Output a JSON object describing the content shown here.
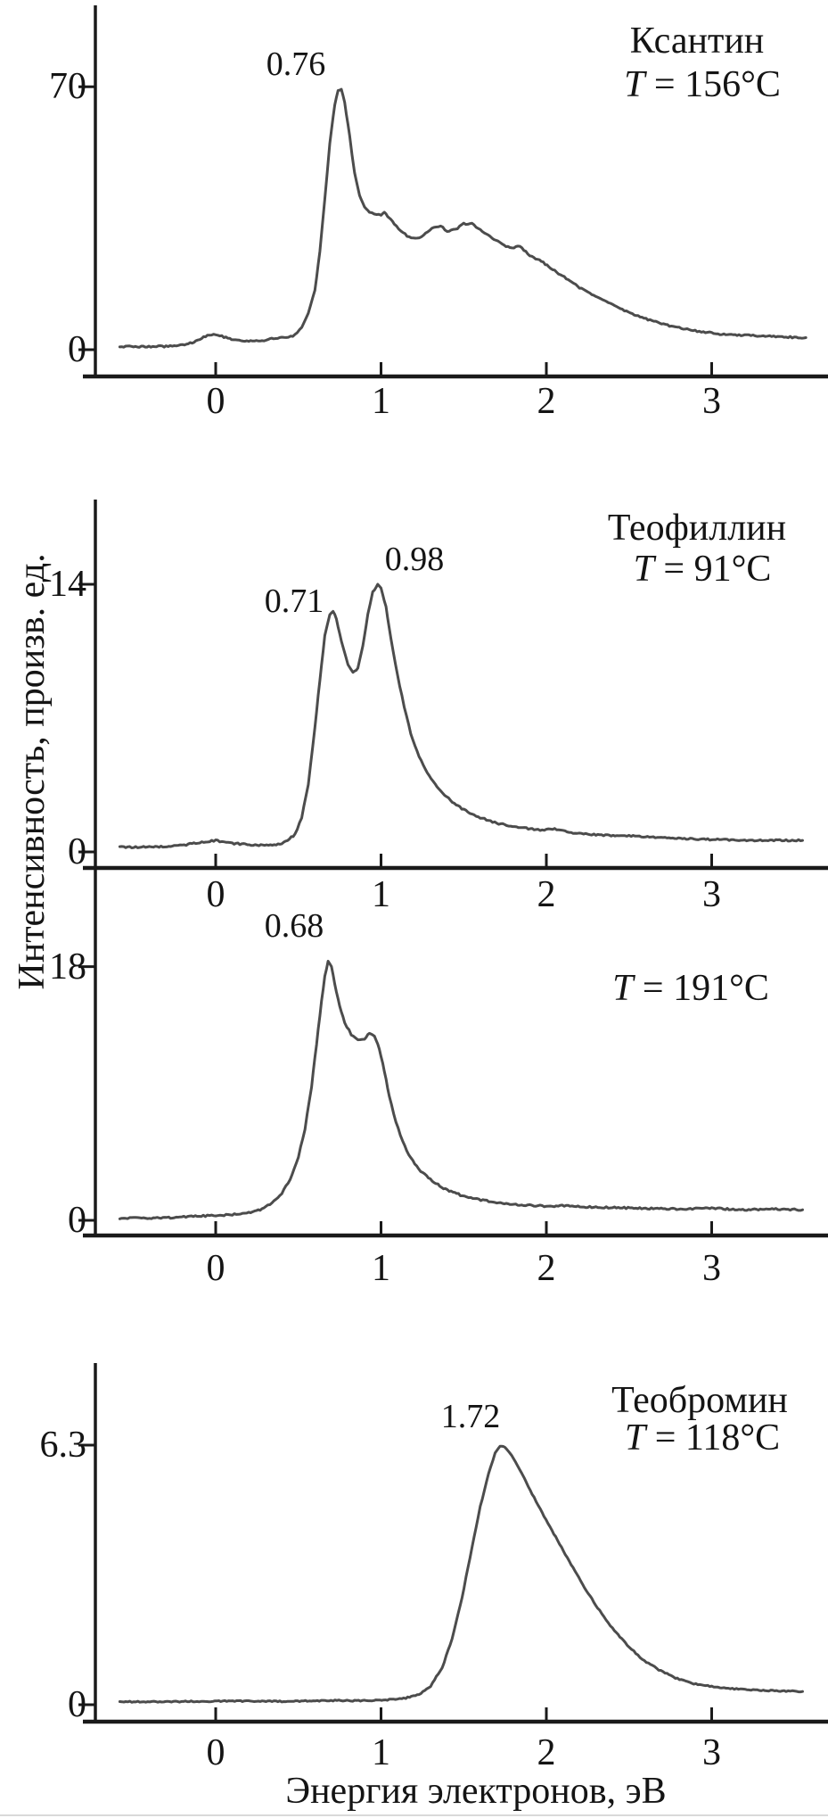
{
  "figure": {
    "x_axis_title": "Энергия электронов, эВ",
    "y_axis_title": "Интенсивность, произв. ед.",
    "x_tick_labels": [
      "0",
      "1",
      "2",
      "3"
    ],
    "x_tick_values": [
      0,
      1,
      2,
      3
    ],
    "curve_color": "#4c4c4c",
    "axis_color": "#1a1a1a"
  },
  "chart_data": [
    {
      "type": "line",
      "title": "Ксантин",
      "temp_prefix": "T",
      "temp_rest": " = 156°C",
      "peak_labels": [
        {
          "text": "0.76",
          "x": 0.76
        }
      ],
      "y_ticks": [
        {
          "label": "70",
          "value": 70
        },
        {
          "label": "0",
          "value": 0
        }
      ],
      "xlim": [
        -0.6,
        3.6
      ],
      "ylim": [
        0,
        78
      ],
      "xlabel": "Энергия электронов, эВ",
      "ylabel": "Интенсивность, произв. ед.",
      "series": [
        {
          "name": "xanthine-spectrum",
          "points": [
            [
              -0.58,
              0.8
            ],
            [
              -0.45,
              0.8
            ],
            [
              -0.3,
              0.9
            ],
            [
              -0.2,
              1.2
            ],
            [
              -0.12,
              2.2
            ],
            [
              -0.05,
              3.8
            ],
            [
              0.0,
              4.1
            ],
            [
              0.05,
              3.4
            ],
            [
              0.12,
              2.6
            ],
            [
              0.2,
              2.2
            ],
            [
              0.28,
              2.3
            ],
            [
              0.35,
              3.0
            ],
            [
              0.4,
              3.4
            ],
            [
              0.44,
              3.2
            ],
            [
              0.48,
              4.0
            ],
            [
              0.52,
              6.0
            ],
            [
              0.56,
              9.5
            ],
            [
              0.6,
              16
            ],
            [
              0.63,
              26
            ],
            [
              0.66,
              40
            ],
            [
              0.69,
              55
            ],
            [
              0.72,
              65
            ],
            [
              0.74,
              69
            ],
            [
              0.76,
              69.5
            ],
            [
              0.78,
              66
            ],
            [
              0.81,
              57
            ],
            [
              0.84,
              47
            ],
            [
              0.87,
              41
            ],
            [
              0.9,
              38
            ],
            [
              0.93,
              36.5
            ],
            [
              0.96,
              36
            ],
            [
              1.0,
              36
            ],
            [
              1.02,
              36.5
            ],
            [
              1.05,
              35
            ],
            [
              1.08,
              33.5
            ],
            [
              1.12,
              31.5
            ],
            [
              1.17,
              30
            ],
            [
              1.22,
              29.5
            ],
            [
              1.27,
              31
            ],
            [
              1.32,
              32.5
            ],
            [
              1.36,
              33
            ],
            [
              1.4,
              31.5
            ],
            [
              1.45,
              32
            ],
            [
              1.5,
              33.5
            ],
            [
              1.55,
              33.5
            ],
            [
              1.6,
              32
            ],
            [
              1.66,
              30
            ],
            [
              1.72,
              28.5
            ],
            [
              1.78,
              27
            ],
            [
              1.84,
              27.5
            ],
            [
              1.9,
              25
            ],
            [
              1.97,
              23.5
            ],
            [
              2.05,
              21
            ],
            [
              2.12,
              19
            ],
            [
              2.2,
              16.5
            ],
            [
              2.3,
              14
            ],
            [
              2.4,
              12
            ],
            [
              2.52,
              9.5
            ],
            [
              2.65,
              7.5
            ],
            [
              2.78,
              6
            ],
            [
              2.9,
              5
            ],
            [
              3.05,
              4.2
            ],
            [
              3.2,
              3.8
            ],
            [
              3.35,
              3.6
            ],
            [
              3.5,
              3.3
            ],
            [
              3.57,
              3.2
            ]
          ]
        }
      ]
    },
    {
      "type": "line",
      "title": "Теофиллин",
      "temp_prefix": "T",
      "temp_rest": " = 91°C",
      "peak_labels": [
        {
          "text": "0.71",
          "x": 0.71
        },
        {
          "text": "0.98",
          "x": 0.98
        }
      ],
      "y_ticks": [
        {
          "label": "14",
          "value": 14
        },
        {
          "label": "0",
          "value": 0
        }
      ],
      "xlim": [
        -0.6,
        3.6
      ],
      "ylim": [
        0,
        17
      ],
      "series": [
        {
          "name": "theophylline-91C-spectrum",
          "points": [
            [
              -0.58,
              0.25
            ],
            [
              -0.4,
              0.25
            ],
            [
              -0.25,
              0.3
            ],
            [
              -0.12,
              0.45
            ],
            [
              0.0,
              0.6
            ],
            [
              0.1,
              0.45
            ],
            [
              0.25,
              0.35
            ],
            [
              0.4,
              0.4
            ],
            [
              0.48,
              0.9
            ],
            [
              0.52,
              1.8
            ],
            [
              0.56,
              3.5
            ],
            [
              0.6,
              6.5
            ],
            [
              0.63,
              9.0
            ],
            [
              0.66,
              11.3
            ],
            [
              0.69,
              12.4
            ],
            [
              0.71,
              12.6
            ],
            [
              0.73,
              12.2
            ],
            [
              0.76,
              11.0
            ],
            [
              0.8,
              9.8
            ],
            [
              0.83,
              9.4
            ],
            [
              0.86,
              9.6
            ],
            [
              0.89,
              10.8
            ],
            [
              0.92,
              12.4
            ],
            [
              0.95,
              13.6
            ],
            [
              0.98,
              14.0
            ],
            [
              1.0,
              13.8
            ],
            [
              1.03,
              12.8
            ],
            [
              1.06,
              11.2
            ],
            [
              1.1,
              9.2
            ],
            [
              1.14,
              7.6
            ],
            [
              1.18,
              6.2
            ],
            [
              1.23,
              5.0
            ],
            [
              1.28,
              4.1
            ],
            [
              1.35,
              3.3
            ],
            [
              1.42,
              2.7
            ],
            [
              1.5,
              2.2
            ],
            [
              1.6,
              1.8
            ],
            [
              1.7,
              1.5
            ],
            [
              1.82,
              1.3
            ],
            [
              1.95,
              1.15
            ],
            [
              2.05,
              1.2
            ],
            [
              2.15,
              1.0
            ],
            [
              2.3,
              0.9
            ],
            [
              2.45,
              0.85
            ],
            [
              2.6,
              0.8
            ],
            [
              2.8,
              0.7
            ],
            [
              3.0,
              0.65
            ],
            [
              3.2,
              0.6
            ],
            [
              3.4,
              0.6
            ],
            [
              3.55,
              0.6
            ]
          ]
        }
      ]
    },
    {
      "type": "line",
      "temp_prefix": "T",
      "temp_rest": " = 191°C",
      "peak_labels": [
        {
          "text": "0.68",
          "x": 0.68
        }
      ],
      "y_ticks": [
        {
          "label": "18",
          "value": 18
        },
        {
          "label": "0",
          "value": 0
        }
      ],
      "xlim": [
        -0.6,
        3.6
      ],
      "ylim": [
        0,
        21
      ],
      "series": [
        {
          "name": "theophylline-191C-spectrum",
          "points": [
            [
              -0.58,
              0.15
            ],
            [
              -0.4,
              0.15
            ],
            [
              -0.25,
              0.2
            ],
            [
              -0.1,
              0.3
            ],
            [
              0.0,
              0.35
            ],
            [
              0.1,
              0.4
            ],
            [
              0.2,
              0.55
            ],
            [
              0.28,
              0.8
            ],
            [
              0.34,
              1.2
            ],
            [
              0.4,
              1.9
            ],
            [
              0.45,
              2.9
            ],
            [
              0.5,
              4.5
            ],
            [
              0.54,
              6.5
            ],
            [
              0.58,
              9.5
            ],
            [
              0.61,
              12.5
            ],
            [
              0.64,
              15.5
            ],
            [
              0.66,
              17.3
            ],
            [
              0.68,
              18.4
            ],
            [
              0.7,
              18.0
            ],
            [
              0.72,
              16.8
            ],
            [
              0.75,
              15.2
            ],
            [
              0.78,
              14.0
            ],
            [
              0.82,
              13.2
            ],
            [
              0.86,
              12.8
            ],
            [
              0.9,
              12.9
            ],
            [
              0.93,
              13.3
            ],
            [
              0.96,
              13.1
            ],
            [
              0.99,
              12.2
            ],
            [
              1.02,
              10.6
            ],
            [
              1.05,
              8.8
            ],
            [
              1.09,
              7.0
            ],
            [
              1.13,
              5.6
            ],
            [
              1.18,
              4.4
            ],
            [
              1.24,
              3.5
            ],
            [
              1.31,
              2.8
            ],
            [
              1.39,
              2.2
            ],
            [
              1.48,
              1.8
            ],
            [
              1.58,
              1.5
            ],
            [
              1.7,
              1.25
            ],
            [
              1.85,
              1.1
            ],
            [
              2.0,
              1.0
            ],
            [
              2.12,
              1.05
            ],
            [
              2.25,
              0.95
            ],
            [
              2.4,
              0.9
            ],
            [
              2.6,
              0.85
            ],
            [
              2.8,
              0.8
            ],
            [
              3.0,
              0.85
            ],
            [
              3.2,
              0.75
            ],
            [
              3.4,
              0.8
            ],
            [
              3.55,
              0.75
            ]
          ]
        }
      ]
    },
    {
      "type": "line",
      "title": "Теобромин",
      "temp_prefix": "T",
      "temp_rest": " = 118°C",
      "peak_labels": [
        {
          "text": "1.72",
          "x": 1.72
        }
      ],
      "y_ticks": [
        {
          "label": "6.3",
          "value": 6.3
        },
        {
          "label": "0",
          "value": 0
        }
      ],
      "xlim": [
        -0.6,
        3.6
      ],
      "ylim": [
        0,
        7.4
      ],
      "series": [
        {
          "name": "theobromine-spectrum",
          "points": [
            [
              -0.58,
              0.07
            ],
            [
              -0.35,
              0.07
            ],
            [
              -0.1,
              0.08
            ],
            [
              0.15,
              0.09
            ],
            [
              0.4,
              0.08
            ],
            [
              0.65,
              0.1
            ],
            [
              0.9,
              0.1
            ],
            [
              1.05,
              0.12
            ],
            [
              1.15,
              0.16
            ],
            [
              1.23,
              0.25
            ],
            [
              1.3,
              0.45
            ],
            [
              1.37,
              0.9
            ],
            [
              1.43,
              1.6
            ],
            [
              1.49,
              2.6
            ],
            [
              1.55,
              3.8
            ],
            [
              1.6,
              4.8
            ],
            [
              1.65,
              5.6
            ],
            [
              1.69,
              6.1
            ],
            [
              1.72,
              6.28
            ],
            [
              1.75,
              6.25
            ],
            [
              1.79,
              6.05
            ],
            [
              1.84,
              5.7
            ],
            [
              1.89,
              5.3
            ],
            [
              1.95,
              4.85
            ],
            [
              2.01,
              4.4
            ],
            [
              2.08,
              3.9
            ],
            [
              2.15,
              3.4
            ],
            [
              2.23,
              2.85
            ],
            [
              2.31,
              2.35
            ],
            [
              2.4,
              1.85
            ],
            [
              2.49,
              1.45
            ],
            [
              2.58,
              1.1
            ],
            [
              2.68,
              0.85
            ],
            [
              2.78,
              0.65
            ],
            [
              2.88,
              0.52
            ],
            [
              3.0,
              0.44
            ],
            [
              3.15,
              0.38
            ],
            [
              3.3,
              0.35
            ],
            [
              3.45,
              0.33
            ],
            [
              3.55,
              0.32
            ]
          ]
        }
      ]
    }
  ]
}
